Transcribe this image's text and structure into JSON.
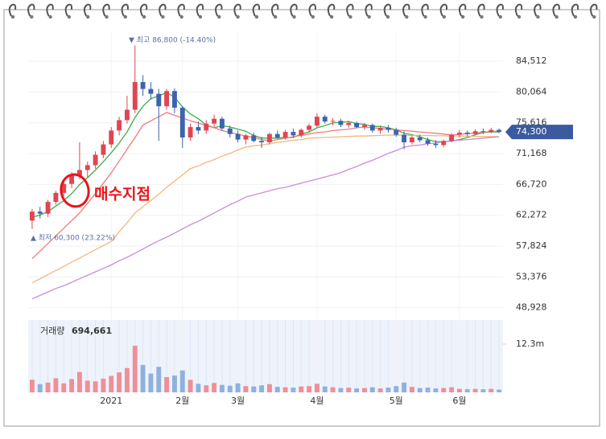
{
  "chart_data": {
    "type": "candlestick",
    "categories": [
      null,
      null,
      null,
      null,
      null,
      null,
      null,
      null,
      null,
      null,
      "2021",
      null,
      null,
      null,
      null,
      null,
      null,
      null,
      null,
      "2월",
      null,
      null,
      null,
      null,
      null,
      null,
      "3월",
      null,
      null,
      null,
      null,
      null,
      null,
      null,
      null,
      null,
      "4월",
      null,
      null,
      null,
      null,
      null,
      null,
      null,
      null,
      null,
      "5월",
      null,
      null,
      null,
      null,
      null,
      null,
      null,
      "6월",
      null,
      null,
      null,
      null,
      null
    ],
    "open": [
      61500,
      62800,
      62500,
      64200,
      65500,
      66800,
      68000,
      68800,
      69500,
      71000,
      72500,
      74500,
      76000,
      77500,
      81500,
      80500,
      79800,
      78000,
      80200,
      77800,
      73500,
      75000,
      74500,
      75500,
      76200,
      74800,
      74000,
      73200,
      73800,
      73000,
      72800,
      74000,
      73500,
      74300,
      73800,
      74600,
      75200,
      76500,
      75800,
      75900,
      75300,
      75600,
      75000,
      75300,
      74500,
      74900,
      74600,
      73900,
      72800,
      73500,
      73100,
      72600,
      72400,
      73000,
      73900,
      74200,
      74000,
      74400,
      74300,
      74600
    ],
    "high": [
      63200,
      63500,
      64500,
      65800,
      67500,
      68500,
      72800,
      70000,
      71500,
      73000,
      75000,
      76500,
      79500,
      86800,
      82500,
      81500,
      80500,
      80500,
      80600,
      78000,
      75500,
      75800,
      76000,
      76800,
      76500,
      75200,
      74500,
      74000,
      74200,
      73600,
      74200,
      74500,
      74600,
      74800,
      74800,
      75500,
      77000,
      76800,
      76300,
      76200,
      75900,
      75800,
      75600,
      75500,
      75200,
      75300,
      74900,
      74400,
      73800,
      73900,
      73500,
      73100,
      73200,
      74100,
      74600,
      74500,
      74700,
      74800,
      74900,
      74800
    ],
    "low": [
      60300,
      61800,
      62000,
      63800,
      65000,
      66200,
      67500,
      67800,
      69000,
      70500,
      72000,
      73800,
      75500,
      77000,
      79500,
      79000,
      73000,
      77500,
      77000,
      72000,
      73000,
      74000,
      74000,
      75000,
      74500,
      73500,
      72800,
      72500,
      72800,
      72000,
      72500,
      73300,
      73200,
      73500,
      73500,
      74200,
      75000,
      75500,
      75200,
      75000,
      74900,
      74800,
      74600,
      74200,
      74000,
      74200,
      73600,
      71800,
      72500,
      72800,
      72300,
      72000,
      72100,
      72800,
      73500,
      73700,
      73800,
      74000,
      74100,
      74100
    ],
    "close": [
      62800,
      62500,
      64200,
      65500,
      66800,
      68000,
      68800,
      69500,
      71000,
      72500,
      74500,
      76000,
      77500,
      81500,
      80500,
      79800,
      78000,
      80200,
      77800,
      73500,
      75000,
      74500,
      75500,
      76200,
      74800,
      74000,
      73200,
      73800,
      73000,
      72800,
      74000,
      73500,
      74300,
      73800,
      74600,
      75200,
      76500,
      75800,
      75900,
      75300,
      75600,
      75000,
      75300,
      74500,
      74900,
      74600,
      73900,
      72800,
      73500,
      73100,
      72600,
      72400,
      73000,
      73900,
      74200,
      74000,
      74400,
      74300,
      74600,
      74300
    ],
    "up_color": "#e04552",
    "down_color": "#3c63b0",
    "lines": [
      {
        "color": "#3fae49",
        "values": [
          62000,
          62300,
          62800,
          63600,
          64400,
          65400,
          66700,
          67700,
          68800,
          70000,
          71300,
          72700,
          74300,
          76400,
          78000,
          79100,
          79500,
          80000,
          79300,
          77900,
          76900,
          76200,
          75300,
          74900,
          75200,
          75000,
          74700,
          74400,
          73800,
          73400,
          73400,
          73400,
          73500,
          73500,
          74000,
          74300,
          74900,
          75200,
          75600,
          75700,
          75800,
          75500,
          75400,
          75100,
          75100,
          74900,
          74600,
          74100,
          73900,
          73600,
          73200,
          72900,
          72900,
          73000,
          73200,
          73500,
          73900,
          74200,
          74300,
          74300
        ]
      },
      {
        "color": "#ef7b7b",
        "values": [
          56000,
          57100,
          58200,
          59300,
          60400,
          61500,
          62600,
          64000,
          65400,
          66900,
          68400,
          70100,
          71800,
          73500,
          75300,
          75900,
          76500,
          77100,
          76700,
          76300,
          75900,
          75600,
          75200,
          74900,
          74500,
          74200,
          74000,
          73700,
          73500,
          73200,
          73000,
          73200,
          73400,
          73600,
          73800,
          74000,
          74200,
          74300,
          74500,
          74600,
          74700,
          74900,
          75000,
          74900,
          74800,
          74700,
          74600,
          74500,
          74400,
          74300,
          74200,
          74100,
          74000,
          73850,
          73950,
          74050,
          74150,
          74250,
          74350,
          74400
        ]
      },
      {
        "color": "#f4b67a",
        "values": [
          52500,
          53100,
          53700,
          54300,
          54900,
          55500,
          56100,
          56700,
          57300,
          57900,
          58500,
          59900,
          61200,
          62600,
          63500,
          64400,
          65300,
          66300,
          67200,
          68100,
          69000,
          69400,
          69900,
          70300,
          70800,
          71200,
          71700,
          72100,
          72300,
          72400,
          72600,
          72800,
          72900,
          73100,
          73200,
          73400,
          73450,
          73500,
          73550,
          73600,
          73650,
          73700,
          73700,
          73750,
          73800,
          73850,
          73830,
          73820,
          73800,
          73790,
          73770,
          73750,
          73740,
          73720,
          73710,
          73690,
          73670,
          73660,
          73640,
          73620
        ]
      },
      {
        "color": "#c98be0",
        "values": [
          50200,
          50700,
          51200,
          51700,
          52100,
          52600,
          53100,
          53600,
          54100,
          54600,
          55100,
          55700,
          56200,
          56800,
          57400,
          58000,
          58600,
          59100,
          59700,
          60300,
          60900,
          61400,
          62000,
          62600,
          63200,
          63800,
          64300,
          64900,
          65200,
          65500,
          65800,
          66100,
          66300,
          66600,
          66900,
          67200,
          67500,
          67800,
          68100,
          68400,
          68900,
          69300,
          69800,
          70200,
          70700,
          71200,
          71600,
          72100,
          72300,
          72400,
          72600,
          72700,
          72900,
          73000,
          73100,
          73200,
          73300,
          73400,
          73500,
          73600
        ]
      }
    ],
    "ylim": [
      47500,
      88700
    ],
    "yticks": [
      {
        "value": 48928,
        "label": "48,928"
      },
      {
        "value": 53376,
        "label": "53,376"
      },
      {
        "value": 57824,
        "label": "57,824"
      },
      {
        "value": 62272,
        "label": "62,272"
      },
      {
        "value": 66720,
        "label": "66,720"
      },
      {
        "value": 71168,
        "label": "71,168"
      },
      {
        "value": 75616,
        "label": "75,616"
      },
      {
        "value": 80064,
        "label": "80,064"
      },
      {
        "value": 84512,
        "label": "84,512"
      }
    ],
    "last_price": {
      "value": 74300,
      "label": "74,300"
    },
    "high_label": "▼ 최고 86,800 (-14.40%)",
    "low_label": "▲ 최저 60,300 (23.22%)",
    "buy_point": "매수지점",
    "volume": {
      "title": "거래량",
      "current_label": "694,661",
      "values": [
        3200000,
        2100000,
        2500000,
        3600000,
        2300000,
        3400000,
        5200000,
        3000000,
        2800000,
        3500000,
        4200000,
        5100000,
        6200000,
        11900000,
        7000000,
        4800000,
        6500000,
        3900000,
        4300000,
        5600000,
        3200000,
        2200000,
        1800000,
        2400000,
        1900000,
        1700000,
        2300000,
        1600000,
        1500000,
        1800000,
        2100000,
        1400000,
        1300000,
        1200000,
        1500000,
        1600000,
        2200000,
        1500000,
        1300000,
        1100000,
        1200000,
        1000000,
        1100000,
        1300000,
        1000000,
        1200000,
        1600000,
        2500000,
        1400000,
        1100000,
        1200000,
        1000000,
        1100000,
        1300000,
        900000,
        800000,
        900000,
        800000,
        900000,
        694661
      ],
      "up_color": "#ef8f98",
      "down_color": "#8fb1de",
      "ylim": [
        0,
        18450000
      ],
      "yticks": [
        {
          "value": 12300000,
          "label": "12.3m"
        }
      ]
    }
  }
}
